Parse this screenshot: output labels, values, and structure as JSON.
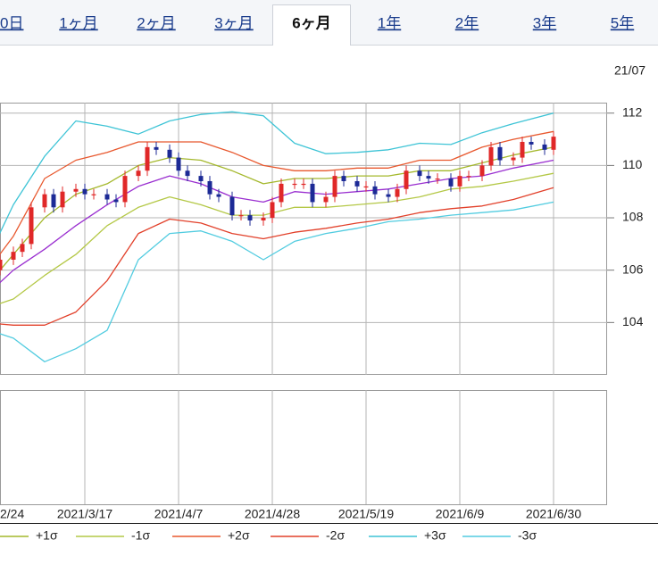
{
  "tabs": [
    "0日",
    "1ヶ月",
    "2ヶ月",
    "3ヶ月",
    "6ヶ月",
    "1年",
    "2年",
    "3年",
    "5年"
  ],
  "active_tab": 4,
  "chart_data": {
    "type": "candlestick",
    "header_date": "21/07",
    "up_color": "#e02828",
    "down_color": "#1c2a96",
    "x": [
      "2021-02-26",
      "2021-03-01",
      "2021-03-03",
      "2021-03-05",
      "2021-03-08",
      "2021-03-10",
      "2021-03-12",
      "2021-03-15",
      "2021-03-17",
      "2021-03-19",
      "2021-03-22",
      "2021-03-24",
      "2021-03-26",
      "2021-03-29",
      "2021-03-31",
      "2021-04-02",
      "2021-04-05",
      "2021-04-07",
      "2021-04-09",
      "2021-04-12",
      "2021-04-14",
      "2021-04-16",
      "2021-04-19",
      "2021-04-21",
      "2021-04-23",
      "2021-04-26",
      "2021-04-28",
      "2021-04-30",
      "2021-05-03",
      "2021-05-05",
      "2021-05-07",
      "2021-05-10",
      "2021-05-12",
      "2021-05-14",
      "2021-05-17",
      "2021-05-19",
      "2021-05-21",
      "2021-05-24",
      "2021-05-26",
      "2021-05-28",
      "2021-05-31",
      "2021-06-02",
      "2021-06-04",
      "2021-06-07",
      "2021-06-09",
      "2021-06-11",
      "2021-06-14",
      "2021-06-16",
      "2021-06-18",
      "2021-06-21",
      "2021-06-23",
      "2021-06-25",
      "2021-06-28",
      "2021-06-30"
    ],
    "open": [
      106.0,
      106.4,
      106.7,
      107.0,
      108.4,
      108.9,
      108.4,
      109.0,
      109.1,
      108.9,
      108.9,
      108.7,
      108.6,
      109.6,
      109.8,
      110.7,
      110.6,
      110.3,
      109.8,
      109.6,
      109.4,
      108.9,
      108.8,
      108.1,
      108.1,
      107.9,
      108.0,
      108.6,
      109.3,
      109.3,
      109.3,
      108.6,
      108.8,
      109.6,
      109.4,
      109.2,
      109.2,
      108.9,
      108.8,
      109.1,
      109.8,
      109.6,
      109.5,
      109.5,
      109.2,
      109.6,
      109.6,
      110.0,
      110.7,
      110.2,
      110.3,
      110.9,
      110.8,
      110.6
    ],
    "high": [
      106.6,
      106.9,
      107.2,
      108.6,
      109.1,
      109.1,
      109.2,
      109.3,
      109.3,
      109.1,
      109.1,
      108.9,
      109.8,
      110.0,
      110.9,
      110.9,
      110.8,
      110.5,
      110.0,
      109.8,
      109.6,
      109.1,
      109.0,
      108.3,
      108.3,
      108.2,
      108.8,
      109.5,
      109.5,
      109.5,
      109.5,
      109.0,
      109.8,
      109.8,
      109.6,
      109.4,
      109.4,
      109.1,
      109.3,
      110.0,
      110.0,
      109.8,
      109.7,
      109.7,
      109.8,
      109.8,
      110.2,
      110.9,
      110.9,
      110.5,
      111.1,
      111.1,
      111.0,
      111.3
    ],
    "low": [
      105.8,
      106.2,
      106.5,
      106.8,
      108.2,
      108.2,
      108.2,
      108.8,
      108.7,
      108.7,
      108.5,
      108.4,
      108.4,
      109.4,
      109.6,
      110.4,
      110.1,
      109.6,
      109.4,
      109.2,
      108.7,
      108.6,
      107.9,
      107.9,
      107.7,
      107.7,
      107.8,
      108.4,
      109.1,
      109.1,
      108.4,
      108.4,
      108.6,
      109.2,
      109.0,
      109.0,
      108.7,
      108.6,
      108.6,
      108.9,
      109.4,
      109.3,
      109.3,
      109.0,
      109.0,
      109.4,
      109.4,
      109.8,
      110.0,
      110.0,
      110.1,
      110.6,
      110.4,
      110.4
    ],
    "close": [
      106.4,
      106.7,
      107.0,
      108.4,
      108.9,
      108.4,
      109.0,
      109.1,
      108.9,
      108.9,
      108.7,
      108.6,
      109.6,
      109.8,
      110.7,
      110.6,
      110.3,
      109.8,
      109.6,
      109.4,
      108.9,
      108.8,
      108.1,
      108.1,
      107.9,
      108.0,
      108.6,
      109.3,
      109.3,
      109.3,
      108.6,
      108.8,
      109.6,
      109.4,
      109.2,
      109.2,
      108.9,
      108.8,
      109.1,
      109.8,
      109.6,
      109.5,
      109.5,
      109.2,
      109.6,
      109.6,
      110.0,
      110.7,
      110.2,
      110.3,
      110.9,
      110.8,
      110.6,
      111.1
    ],
    "bands": {
      "x": [
        "2021-02-22",
        "2021-03-01",
        "2021-03-08",
        "2021-03-15",
        "2021-03-22",
        "2021-03-29",
        "2021-04-05",
        "2021-04-12",
        "2021-04-19",
        "2021-04-26",
        "2021-05-03",
        "2021-05-10",
        "2021-05-17",
        "2021-05-24",
        "2021-05-31",
        "2021-06-07",
        "2021-06-14",
        "2021-06-21",
        "2021-06-30"
      ],
      "series": [
        {
          "color": "#9a2fd0",
          "values": [
            104.9,
            106.0,
            106.8,
            107.7,
            108.5,
            109.2,
            109.6,
            109.3,
            108.8,
            108.6,
            109.0,
            108.9,
            109.0,
            109.1,
            109.3,
            109.5,
            109.6,
            109.9,
            110.2
          ]
        },
        {
          "name": "+1σ",
          "color": "#a4b82c",
          "values": [
            105.2,
            106.6,
            108.0,
            108.9,
            109.3,
            110.0,
            110.3,
            110.2,
            109.8,
            109.3,
            109.5,
            109.5,
            109.6,
            109.6,
            109.8,
            109.8,
            110.1,
            110.4,
            110.7
          ]
        },
        {
          "name": "-1σ",
          "color": "#b4c846",
          "values": [
            104.5,
            104.9,
            105.8,
            106.6,
            107.7,
            108.4,
            108.8,
            108.5,
            108.1,
            108.1,
            108.4,
            108.4,
            108.5,
            108.6,
            108.8,
            109.1,
            109.2,
            109.4,
            109.7
          ]
        },
        {
          "name": "+2σ",
          "color": "#e8582e",
          "values": [
            105.7,
            107.3,
            109.5,
            110.2,
            110.5,
            110.9,
            110.9,
            110.9,
            110.5,
            110.0,
            109.8,
            109.8,
            109.9,
            109.9,
            110.2,
            110.2,
            110.7,
            111.0,
            111.3
          ]
        },
        {
          "name": "-2σ",
          "color": "#e2402a",
          "values": [
            104.0,
            103.9,
            103.9,
            104.4,
            105.6,
            107.4,
            107.95,
            107.8,
            107.4,
            107.2,
            107.45,
            107.6,
            107.8,
            107.95,
            108.2,
            108.35,
            108.45,
            108.7,
            109.15
          ]
        },
        {
          "name": "+3σ",
          "color": "#3ec4d6",
          "values": [
            106.0,
            108.5,
            110.35,
            111.7,
            111.5,
            111.2,
            111.7,
            111.95,
            112.05,
            111.9,
            110.85,
            110.45,
            110.5,
            110.6,
            110.85,
            110.8,
            111.25,
            111.6,
            112.0
          ]
        },
        {
          "name": "-3σ",
          "color": "#52cce0",
          "values": [
            103.8,
            103.4,
            102.5,
            103.0,
            103.7,
            106.4,
            107.4,
            107.5,
            107.1,
            106.4,
            107.1,
            107.4,
            107.6,
            107.85,
            107.95,
            108.1,
            108.2,
            108.3,
            108.6
          ]
        }
      ]
    },
    "xlim": [
      "2021-02-26",
      "2021-07-12"
    ],
    "xticks": [
      {
        "value": "2021-02-24",
        "label": "2/24"
      },
      {
        "value": "2021-03-17",
        "label": "2021/3/17"
      },
      {
        "value": "2021-04-07",
        "label": "2021/4/7"
      },
      {
        "value": "2021-04-28",
        "label": "2021/4/28"
      },
      {
        "value": "2021-05-19",
        "label": "2021/5/19"
      },
      {
        "value": "2021-06-09",
        "label": "2021/6/9"
      },
      {
        "value": "2021-06-30",
        "label": "2021/6/30"
      }
    ],
    "ylim": [
      102,
      112.4
    ],
    "yticks": [
      104,
      106,
      108,
      110,
      112
    ],
    "grid": true
  }
}
